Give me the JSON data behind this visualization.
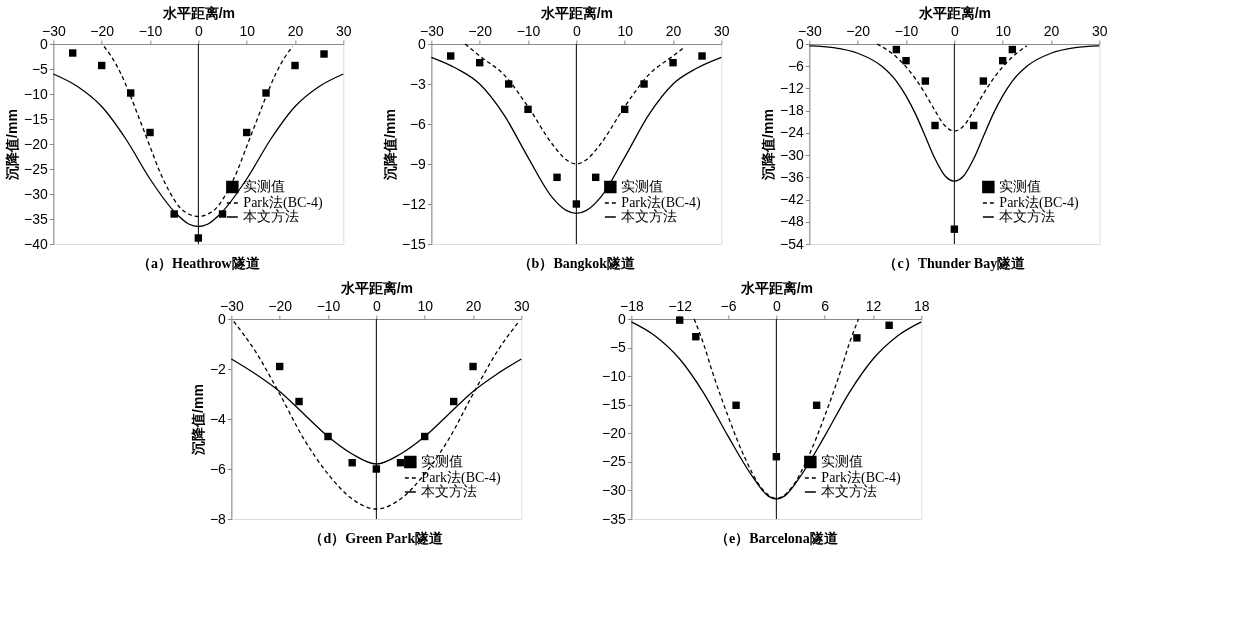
{
  "chart_data": [
    {
      "type": "scatter",
      "title": "（a）Heathrow隧道",
      "xlabel": "水平距离/m",
      "ylabel": "沉降值/mm",
      "xlim": [
        -30,
        30
      ],
      "xticks": [
        -30,
        -20,
        -10,
        0,
        10,
        20,
        30
      ],
      "ylim": [
        -40,
        0
      ],
      "yticks": [
        0,
        -5,
        -10,
        -15,
        -20,
        -25,
        -30,
        -35,
        -40
      ],
      "grid": false,
      "legend": "bottom right",
      "ref_lines": [
        {
          "axis": "x",
          "value": 0,
          "color": "#000000"
        }
      ],
      "series": [
        {
          "name": "实测值",
          "type": "scatter",
          "marker": "square",
          "color": "#000000",
          "x": [
            -26,
            -20,
            -14,
            -10,
            -5,
            0,
            5,
            10,
            14,
            20,
            26
          ],
          "values": [
            -1.8,
            -4.3,
            -9.8,
            -17.7,
            -34,
            -38.8,
            -34,
            -17.7,
            -9.8,
            -4.3,
            -2
          ]
        },
        {
          "name": "Park法(BC-4)",
          "type": "line",
          "line_style": "dashed",
          "color": "#000000",
          "x": [
            -19.5,
            -18,
            -16,
            -14,
            -12,
            -10,
            -8,
            -6,
            -4,
            -2,
            0,
            2,
            4,
            6,
            8,
            10,
            12,
            14,
            16,
            18,
            19.5
          ],
          "values": [
            -0.5,
            -2.5,
            -6,
            -10.5,
            -15.5,
            -20.5,
            -25.5,
            -29.5,
            -32.5,
            -34,
            -34.5,
            -34,
            -32.5,
            -29.5,
            -25.5,
            -20.5,
            -15.5,
            -10.5,
            -6,
            -2.5,
            -0.5
          ]
        },
        {
          "name": "本文方法",
          "type": "line",
          "line_style": "solid",
          "color": "#000000",
          "x": [
            -30,
            -25,
            -20,
            -15,
            -10,
            -5,
            -2,
            0,
            2,
            5,
            10,
            15,
            20,
            25,
            30
          ],
          "values": [
            -6,
            -8.5,
            -12.5,
            -19,
            -27,
            -33.5,
            -36,
            -36.5,
            -36,
            -33.5,
            -27,
            -19,
            -12.5,
            -8.5,
            -6
          ]
        }
      ]
    },
    {
      "type": "scatter",
      "title": "（b）Bangkok隧道",
      "xlabel": "水平距离/m",
      "ylabel": "沉降值/mm",
      "xlim": [
        -30,
        30
      ],
      "xticks": [
        -30,
        -20,
        -10,
        0,
        10,
        20,
        30
      ],
      "ylim": [
        -15,
        0
      ],
      "yticks": [
        0,
        -3,
        -6,
        -9,
        -12,
        -15
      ],
      "grid": false,
      "legend": "bottom right",
      "ref_lines": [
        {
          "axis": "x",
          "value": 0,
          "color": "#000000"
        }
      ],
      "series": [
        {
          "name": "实测值",
          "type": "scatter",
          "marker": "square",
          "color": "#000000",
          "x": [
            -26,
            -20,
            -14,
            -10,
            -4,
            0,
            4,
            10,
            14,
            20,
            26
          ],
          "values": [
            -0.9,
            -1.4,
            -3,
            -4.9,
            -10,
            -12,
            -10,
            -4.9,
            -3,
            -1.4,
            -0.9
          ]
        },
        {
          "name": "Park法(BC-4)",
          "type": "line",
          "line_style": "dashed",
          "color": "#000000",
          "x": [
            -23,
            -20,
            -15,
            -10,
            -5,
            -2,
            0,
            2,
            5,
            10,
            15,
            20,
            22.5
          ],
          "values": [
            0,
            -0.9,
            -2.3,
            -4.7,
            -7.5,
            -8.7,
            -9,
            -8.7,
            -7.5,
            -4.7,
            -2.3,
            -0.9,
            -0.2
          ]
        },
        {
          "name": "本文方法",
          "type": "line",
          "line_style": "solid",
          "color": "#000000",
          "x": [
            -30,
            -25,
            -20,
            -15,
            -10,
            -5,
            -2,
            0,
            2,
            5,
            10,
            15,
            20,
            25,
            30
          ],
          "values": [
            -1,
            -1.8,
            -3,
            -5.3,
            -8.5,
            -11.5,
            -12.5,
            -12.7,
            -12.5,
            -11.5,
            -8.5,
            -5.3,
            -3,
            -1.8,
            -1
          ]
        }
      ]
    },
    {
      "type": "scatter",
      "title": "（c）Thunder Bay隧道",
      "xlabel": "水平距离/m",
      "ylabel": "沉降值/mm",
      "xlim": [
        -30,
        30
      ],
      "xticks": [
        -30,
        -20,
        -10,
        0,
        10,
        20,
        30
      ],
      "ylim": [
        -54,
        0
      ],
      "yticks": [
        0,
        -6,
        -12,
        -18,
        -24,
        -30,
        -36,
        -42,
        -48,
        -54
      ],
      "grid": false,
      "legend": "bottom right",
      "ref_lines": [
        {
          "axis": "x",
          "value": 0,
          "color": "#000000"
        }
      ],
      "series": [
        {
          "name": "实测值",
          "type": "scatter",
          "marker": "square",
          "color": "#000000",
          "x": [
            -12,
            -10,
            -6,
            -4,
            0,
            4,
            6,
            10,
            12
          ],
          "values": [
            -1.5,
            -4.5,
            -10,
            -22,
            -50,
            -22,
            -10,
            -4.5,
            -1.5
          ]
        },
        {
          "name": "Park法(BC-4)",
          "type": "line",
          "line_style": "dashed",
          "color": "#000000",
          "x": [
            -16,
            -12,
            -8,
            -6,
            -4,
            -2,
            0,
            2,
            4,
            6,
            8,
            12,
            15
          ],
          "values": [
            0,
            -3.5,
            -9.5,
            -13.5,
            -18,
            -22,
            -23.5,
            -22,
            -18,
            -13.5,
            -9.5,
            -3.5,
            -0.5
          ]
        },
        {
          "name": "本文方法",
          "type": "line",
          "line_style": "solid",
          "color": "#000000",
          "x": [
            -30,
            -25,
            -20,
            -15,
            -12,
            -10,
            -8,
            -6,
            -4,
            -2,
            0,
            2,
            4,
            6,
            8,
            10,
            12,
            15,
            20,
            25,
            30
          ],
          "values": [
            -0.5,
            -1,
            -2.5,
            -6,
            -10,
            -14,
            -19,
            -25,
            -31,
            -35.5,
            -37,
            -35.5,
            -31,
            -25,
            -19,
            -14,
            -10,
            -6,
            -2.5,
            -1,
            -0.5
          ]
        }
      ]
    },
    {
      "type": "scatter",
      "title": "（d）Green Park隧道",
      "xlabel": "水平距离/m",
      "ylabel": "沉降值/mm",
      "xlim": [
        -30,
        30
      ],
      "xticks": [
        -30,
        -20,
        -10,
        0,
        10,
        20,
        30
      ],
      "ylim": [
        -8,
        0
      ],
      "yticks": [
        0,
        -2,
        -4,
        -6,
        -8
      ],
      "grid": false,
      "legend": "bottom right",
      "ref_lines": [
        {
          "axis": "x",
          "value": 0,
          "color": "#000000"
        }
      ],
      "series": [
        {
          "name": "实测值",
          "type": "scatter",
          "marker": "square",
          "color": "#000000",
          "x": [
            -20,
            -16,
            -10,
            -5,
            0,
            5,
            10,
            16,
            20
          ],
          "values": [
            -1.9,
            -3.3,
            -4.7,
            -5.75,
            -6,
            -5.75,
            -4.7,
            -3.3,
            -1.9
          ]
        },
        {
          "name": "Park法(BC-4)",
          "type": "line",
          "line_style": "dashed",
          "color": "#000000",
          "x": [
            -29.5,
            -25,
            -20,
            -15,
            -10,
            -5,
            0,
            5,
            10,
            15,
            20,
            25,
            29.5
          ],
          "values": [
            -0.1,
            -1.3,
            -3,
            -4.8,
            -6.2,
            -7.2,
            -7.6,
            -7.2,
            -6.2,
            -4.8,
            -3,
            -1.3,
            -0.1
          ]
        },
        {
          "name": "本文方法",
          "type": "line",
          "line_style": "solid",
          "color": "#000000",
          "x": [
            -30,
            -25,
            -20,
            -15,
            -10,
            -5,
            0,
            5,
            10,
            15,
            20,
            25,
            30
          ],
          "values": [
            -1.6,
            -2.2,
            -2.9,
            -3.8,
            -4.7,
            -5.4,
            -5.8,
            -5.4,
            -4.7,
            -3.8,
            -2.9,
            -2.2,
            -1.6
          ]
        }
      ]
    },
    {
      "type": "scatter",
      "title": "（e）Barcelona隧道",
      "xlabel": "水平距离/m",
      "xlim": [
        -18,
        18
      ],
      "xticks": [
        -18,
        -12,
        -6,
        0,
        6,
        12,
        18
      ],
      "ylim": [
        -35,
        0
      ],
      "yticks": [
        0,
        -5,
        -10,
        -15,
        -20,
        -25,
        -30,
        -35
      ],
      "grid": false,
      "legend": "bottom right",
      "ref_lines": [
        {
          "axis": "x",
          "value": 0,
          "color": "#000000"
        }
      ],
      "series": [
        {
          "name": "实测值",
          "type": "scatter",
          "marker": "square",
          "color": "#000000",
          "x": [
            -12,
            -10,
            -5,
            0,
            5,
            10,
            14
          ],
          "values": [
            -0.2,
            -3.1,
            -15.1,
            -24.1,
            -15.1,
            -3.3,
            -1.1
          ]
        },
        {
          "name": "Park法(BC-4)",
          "type": "line",
          "line_style": "dashed",
          "color": "#000000",
          "x": [
            -10.2,
            -9,
            -8,
            -6,
            -4,
            -2,
            0,
            2,
            4,
            6,
            8,
            9,
            10.2
          ],
          "values": [
            0,
            -4.5,
            -9,
            -17,
            -24,
            -29.3,
            -31.4,
            -29.3,
            -24,
            -17,
            -9,
            -4.5,
            0
          ]
        },
        {
          "name": "本文方法",
          "type": "line",
          "line_style": "solid",
          "color": "#000000",
          "x": [
            -18,
            -15,
            -12,
            -9,
            -6,
            -3,
            -1,
            0,
            1,
            3,
            6,
            9,
            12,
            15,
            18
          ],
          "values": [
            -0.5,
            -3,
            -7,
            -13,
            -20.5,
            -27.5,
            -31,
            -31.5,
            -31,
            -27.5,
            -20.5,
            -13,
            -7,
            -3,
            -0.5
          ]
        }
      ]
    }
  ]
}
